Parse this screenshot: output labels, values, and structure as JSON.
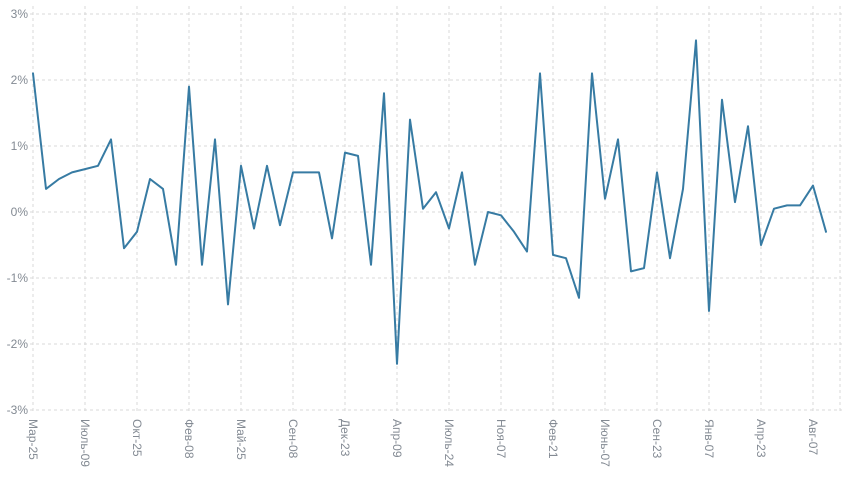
{
  "chart_data": {
    "type": "line",
    "title": "",
    "xlabel": "",
    "ylabel": "",
    "unit": "%",
    "ylim": [
      -3,
      3
    ],
    "grid": true,
    "grid_style": "dashed",
    "legend": "none",
    "line_color": "#377ba3",
    "grid_color": "#d9d9d9",
    "tick_color": "#838a93",
    "background": "#ffffff",
    "y_ticks": [
      3,
      2,
      1,
      0,
      -1,
      -2,
      -3
    ],
    "y_tick_labels": [
      "3%",
      "2%",
      "1%",
      "0%",
      "-1%",
      "-2%",
      "-3%"
    ],
    "x_tick_labels": [
      "Мар-25",
      "Июль-09",
      "Окт-25",
      "Фев-08",
      "Май-25",
      "Сен-08",
      "Дек-23",
      "Апр-09",
      "Июль-24",
      "Ноя-07",
      "Фев-21",
      "Июнь-07",
      "Сен-23",
      "Янв-07",
      "Апр-23",
      "Авг-07"
    ],
    "label_every": 4,
    "values": [
      2.1,
      0.35,
      0.5,
      0.6,
      0.65,
      0.7,
      1.1,
      -0.55,
      -0.3,
      0.5,
      0.35,
      -0.8,
      1.9,
      -0.8,
      1.1,
      -1.4,
      0.7,
      -0.25,
      0.7,
      -0.2,
      0.6,
      0.6,
      0.6,
      -0.4,
      0.9,
      0.85,
      -0.8,
      1.8,
      -2.3,
      1.4,
      0.05,
      0.3,
      -0.25,
      0.6,
      -0.8,
      0.0,
      -0.05,
      -0.3,
      -0.6,
      2.1,
      -0.65,
      -0.7,
      -1.3,
      2.1,
      0.2,
      1.1,
      -0.9,
      -0.85,
      0.6,
      -0.7,
      0.35,
      2.6,
      -1.5,
      1.7,
      0.15,
      1.3,
      -0.5,
      0.05,
      0.1,
      0.1,
      0.4,
      -0.3
    ]
  }
}
